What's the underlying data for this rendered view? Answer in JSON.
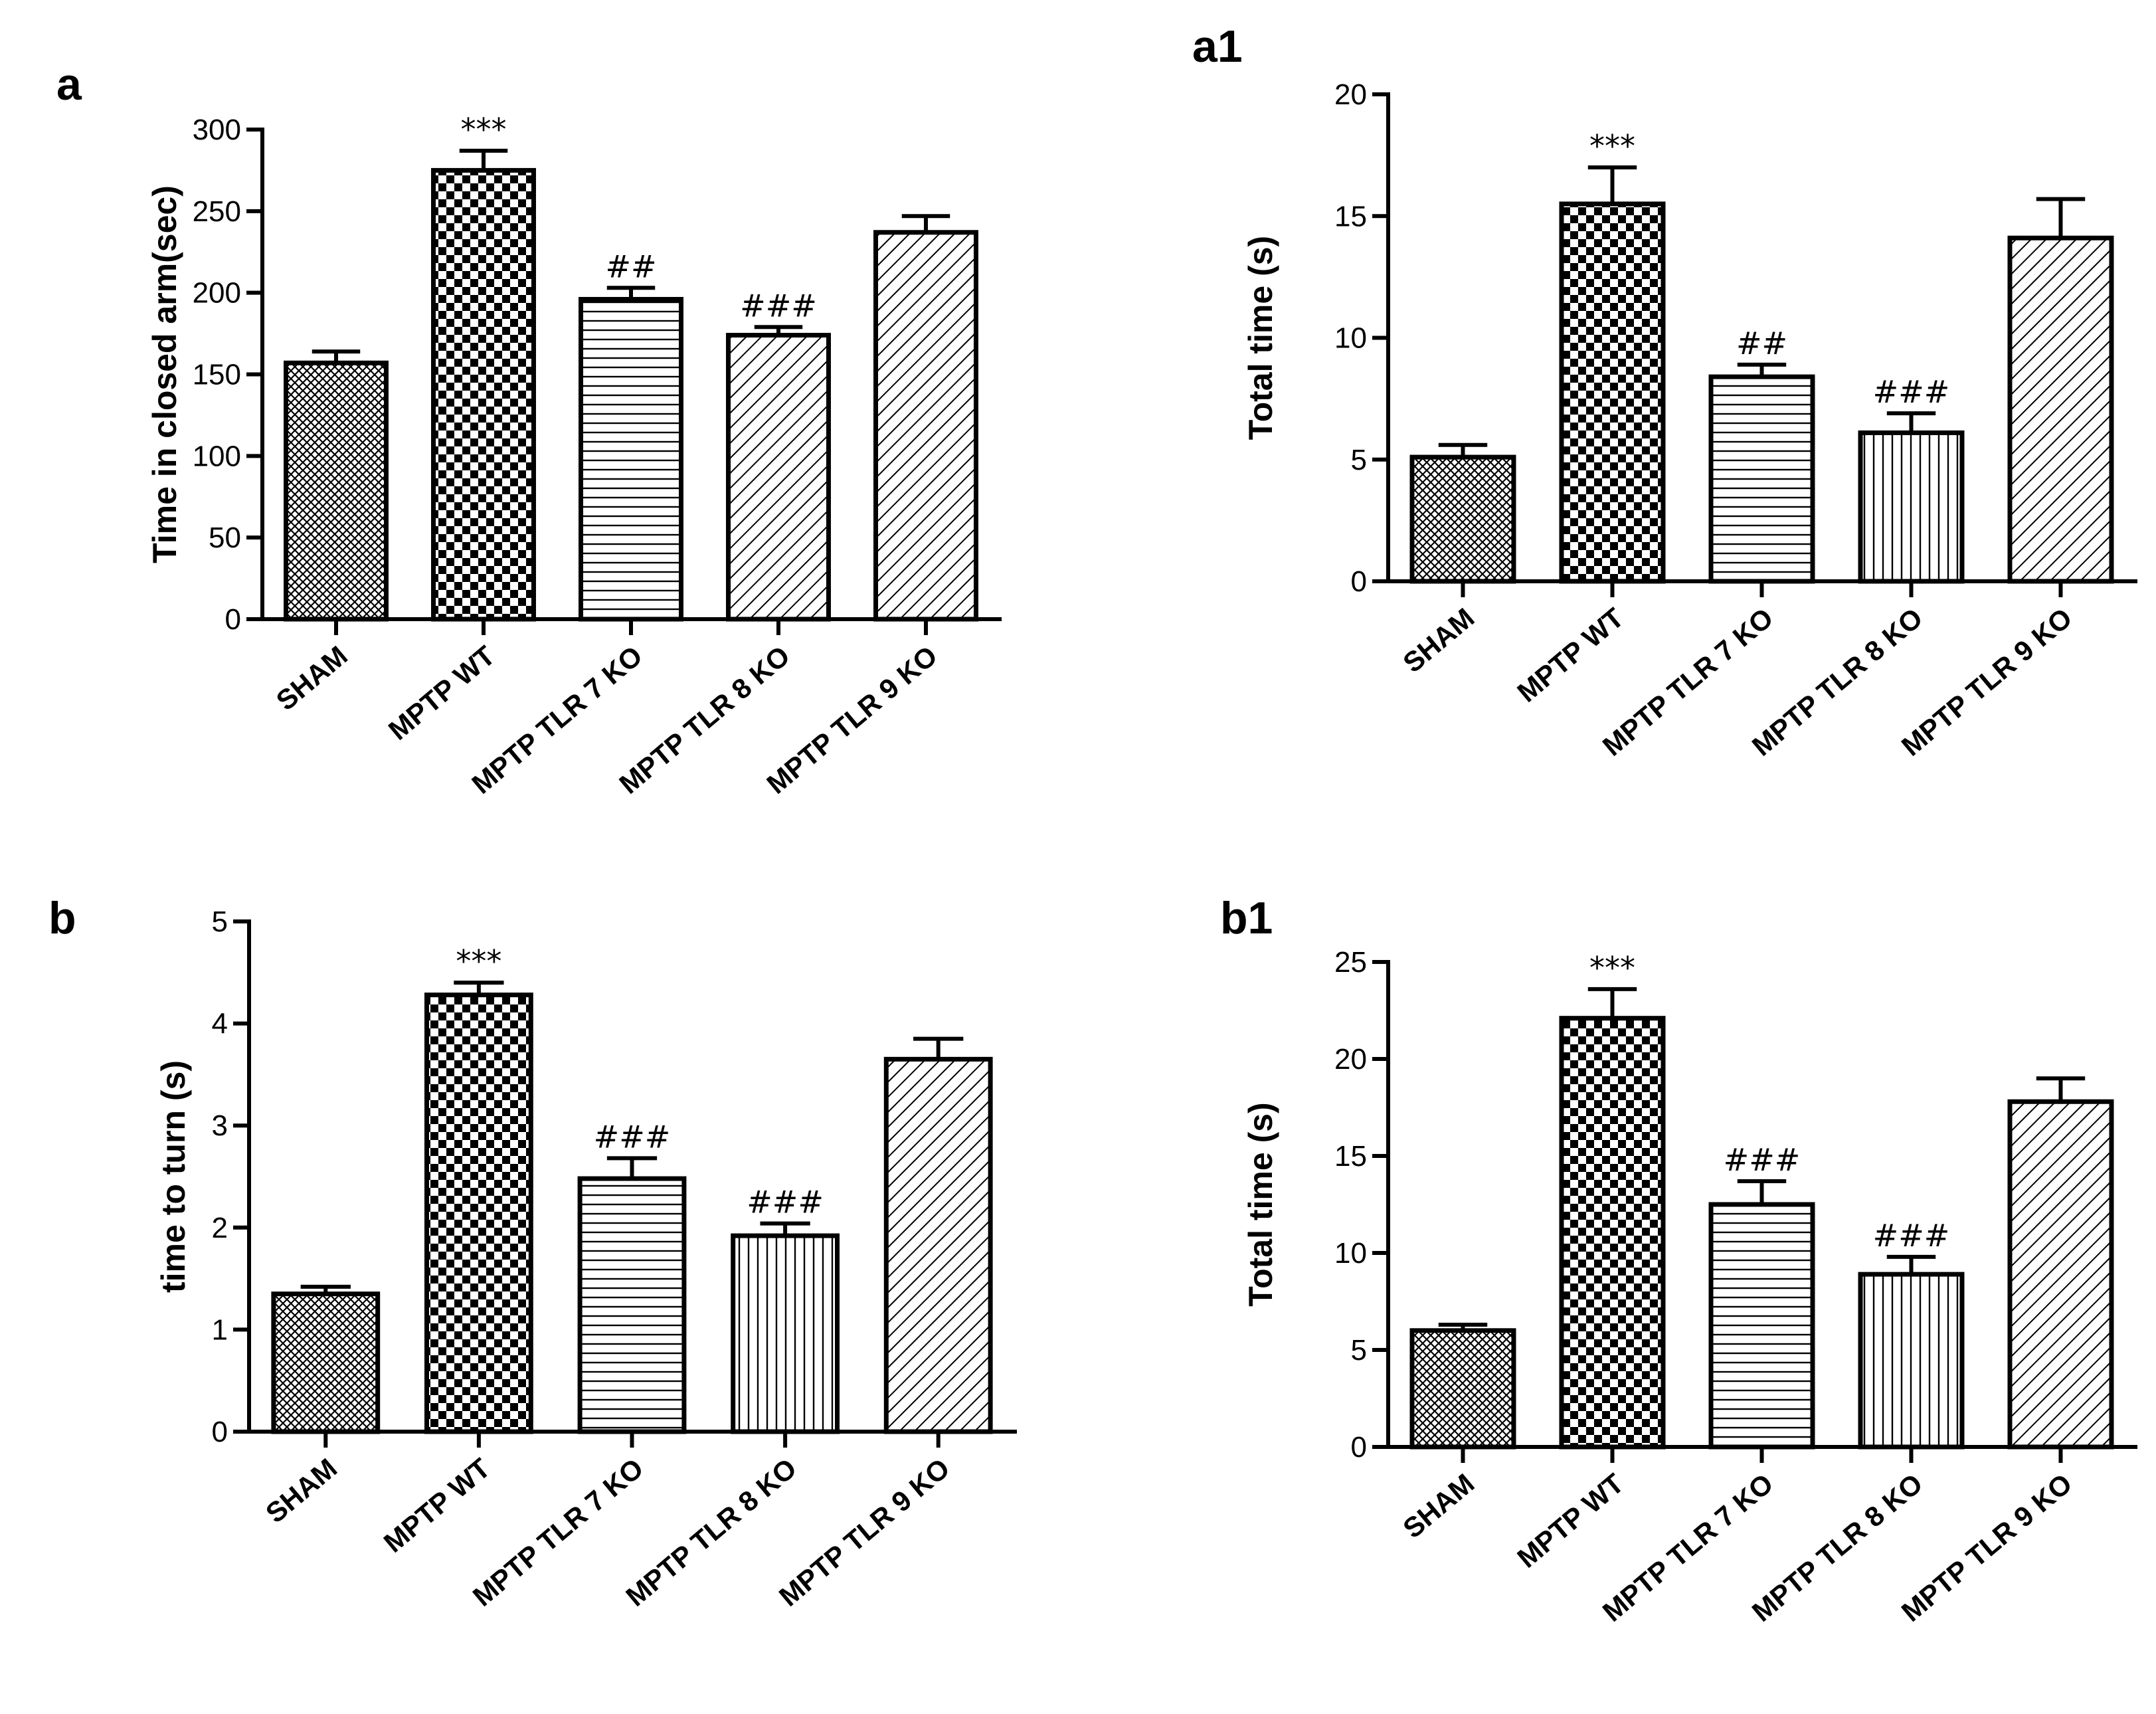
{
  "chart_data": [
    {
      "id": "a",
      "type": "bar",
      "panel_label": "a",
      "title": "",
      "xlabel": "",
      "ylabel": "Time in closed arm(sec)",
      "ylim": [
        0,
        300
      ],
      "yticks": [
        "0",
        "50",
        "100",
        "150",
        "200",
        "250",
        "300"
      ],
      "categories": [
        "SHAM",
        "MPTP WT",
        "MPTP TLR 7 KO",
        "MPTP TLR 8 KO",
        "MPTP TLR 9 KO"
      ],
      "values": [
        157,
        275,
        196,
        174,
        237
      ],
      "errors": [
        7,
        12,
        7,
        5,
        10
      ],
      "annotations": [
        "",
        "***",
        "##",
        "###",
        ""
      ],
      "patterns": [
        "crosshatch",
        "checker",
        "horizontal",
        "diagonal",
        "diagonal"
      ]
    },
    {
      "id": "a1",
      "type": "bar",
      "panel_label": "a1",
      "title": "",
      "xlabel": "",
      "ylabel": "Total time (s)",
      "ylim": [
        0,
        20
      ],
      "yticks": [
        "0",
        "5",
        "10",
        "15",
        "20"
      ],
      "categories": [
        "SHAM",
        "MPTP WT",
        "MPTP TLR 7 KO",
        "MPTP TLR 8 KO",
        "MPTP TLR 9 KO"
      ],
      "values": [
        5.1,
        15.5,
        8.4,
        6.1,
        14.1
      ],
      "errors": [
        0.5,
        1.5,
        0.5,
        0.8,
        1.6
      ],
      "annotations": [
        "",
        "***",
        "##",
        "###",
        ""
      ],
      "patterns": [
        "crosshatch",
        "checker",
        "horizontal",
        "vertical",
        "diagonal"
      ]
    },
    {
      "id": "b",
      "type": "bar",
      "panel_label": "b",
      "title": "",
      "xlabel": "",
      "ylabel": "time to turn (s)",
      "ylim": [
        0,
        5
      ],
      "yticks": [
        "0",
        "1",
        "2",
        "3",
        "4",
        "5"
      ],
      "categories": [
        "SHAM",
        "MPTP WT",
        "MPTP TLR 7 KO",
        "MPTP TLR 8 KO",
        "MPTP TLR 9 KO"
      ],
      "values": [
        1.35,
        4.28,
        2.48,
        1.92,
        3.65
      ],
      "errors": [
        0.07,
        0.12,
        0.2,
        0.12,
        0.2
      ],
      "annotations": [
        "",
        "***",
        "###",
        "###",
        ""
      ],
      "patterns": [
        "crosshatch",
        "checker",
        "horizontal",
        "vertical",
        "diagonal"
      ]
    },
    {
      "id": "b1",
      "type": "bar",
      "panel_label": "b1",
      "title": "",
      "xlabel": "",
      "ylabel": "Total time (s)",
      "ylim": [
        0,
        25
      ],
      "yticks": [
        "0",
        "5",
        "10",
        "15",
        "20",
        "25"
      ],
      "categories": [
        "SHAM",
        "MPTP WT",
        "MPTP TLR 7 KO",
        "MPTP TLR 8 KO",
        "MPTP TLR 9 KO"
      ],
      "values": [
        6.0,
        22.1,
        12.5,
        8.9,
        17.8
      ],
      "errors": [
        0.3,
        1.5,
        1.2,
        0.9,
        1.2
      ],
      "annotations": [
        "",
        "***",
        "###",
        "###",
        ""
      ],
      "patterns": [
        "crosshatch",
        "checker",
        "horizontal",
        "vertical",
        "diagonal"
      ]
    }
  ]
}
